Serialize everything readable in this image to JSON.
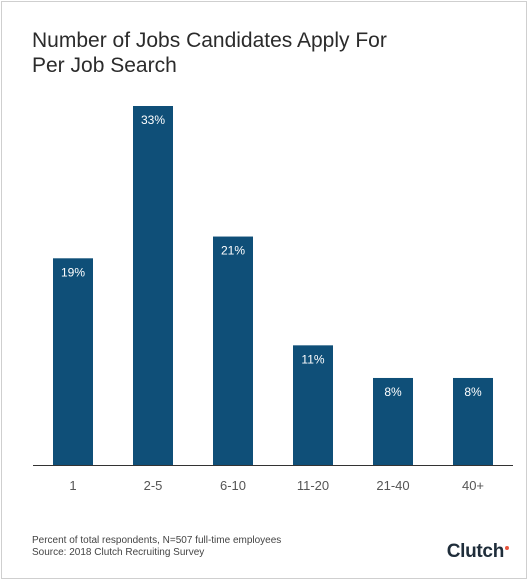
{
  "colors": {
    "bar": "#0f4f78",
    "bar_label": "#ffffff",
    "axis_line": "#333333",
    "tick_label": "#555555",
    "brand_accent": "#e8553d"
  },
  "chart_data": {
    "type": "bar",
    "title_lines": [
      "Number of Jobs Candidates Apply For",
      "Per Job Search"
    ],
    "categories": [
      "1",
      "2-5",
      "6-10",
      "11-20",
      "21-40",
      "40+"
    ],
    "values": [
      19,
      33,
      21,
      11,
      8,
      8
    ],
    "data_labels": [
      "19%",
      "33%",
      "21%",
      "11%",
      "8%",
      "8%"
    ],
    "value_unit": "%",
    "ylim": [
      0,
      33
    ],
    "grid": false,
    "legend": "none"
  },
  "footnote": {
    "line1": "Percent of total respondents, N=507 full-time employees",
    "line2": "Source: 2018 Clutch Recruiting Survey"
  },
  "logo": {
    "text": "Clutch"
  }
}
